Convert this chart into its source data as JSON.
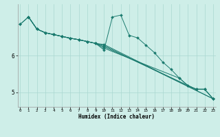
{
  "xlabel": "Humidex (Indice chaleur)",
  "background_color": "#ceeee8",
  "grid_color": "#aad8d0",
  "line_color": "#1a7a6e",
  "xlim": [
    -0.3,
    23.3
  ],
  "ylim": [
    4.6,
    7.4
  ],
  "yticks": [
    5,
    6
  ],
  "xticks": [
    0,
    1,
    2,
    3,
    4,
    5,
    6,
    7,
    8,
    9,
    10,
    11,
    12,
    13,
    14,
    15,
    16,
    17,
    18,
    19,
    20,
    21,
    22,
    23
  ],
  "lines": [
    {
      "x": [
        0,
        1,
        2,
        3,
        4,
        5,
        6,
        7,
        8,
        9,
        10,
        11,
        12,
        13,
        14,
        15,
        16,
        17,
        18,
        19,
        20,
        21,
        22,
        23
      ],
      "y": [
        6.85,
        7.05,
        6.72,
        6.62,
        6.57,
        6.52,
        6.47,
        6.43,
        6.38,
        6.33,
        6.15,
        7.05,
        7.1,
        6.55,
        6.48,
        6.28,
        6.08,
        5.82,
        5.62,
        5.38,
        5.18,
        5.08,
        5.08,
        4.82
      ]
    },
    {
      "x": [
        0,
        1,
        2,
        3,
        4,
        5,
        6,
        7,
        8,
        9,
        10,
        23
      ],
      "y": [
        6.85,
        7.05,
        6.72,
        6.62,
        6.57,
        6.52,
        6.47,
        6.43,
        6.38,
        6.33,
        6.3,
        4.82
      ]
    },
    {
      "x": [
        1,
        2,
        3,
        4,
        5,
        6,
        7,
        8,
        9,
        10,
        23
      ],
      "y": [
        7.05,
        6.72,
        6.62,
        6.57,
        6.52,
        6.47,
        6.43,
        6.38,
        6.33,
        6.27,
        4.82
      ]
    },
    {
      "x": [
        1,
        2,
        3,
        4,
        5,
        6,
        7,
        8,
        9,
        10,
        21,
        22,
        23
      ],
      "y": [
        7.05,
        6.72,
        6.62,
        6.57,
        6.52,
        6.47,
        6.43,
        6.38,
        6.33,
        6.24,
        5.08,
        5.08,
        4.82
      ]
    },
    {
      "x": [
        1,
        2,
        3,
        4,
        5,
        6,
        7,
        8,
        9,
        10,
        19,
        20,
        21,
        22,
        23
      ],
      "y": [
        7.05,
        6.72,
        6.62,
        6.57,
        6.52,
        6.47,
        6.43,
        6.38,
        6.33,
        6.2,
        5.38,
        5.18,
        5.08,
        5.08,
        4.82
      ]
    }
  ]
}
